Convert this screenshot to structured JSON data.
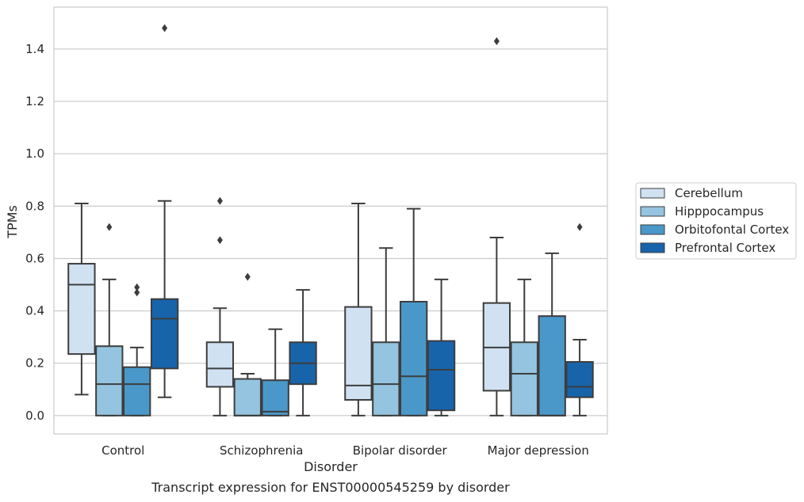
{
  "caption": "Transcript expression for ENST00000545259 by disorder",
  "chart_data": {
    "type": "box",
    "xlabel": "Disorder",
    "ylabel": "TPMs",
    "ylim": [
      -0.07,
      1.56
    ],
    "yticks": [
      0.0,
      0.2,
      0.4,
      0.6,
      0.8,
      1.0,
      1.2,
      1.4
    ],
    "ytick_labels": [
      "0.0",
      "0.2",
      "0.4",
      "0.6",
      "0.8",
      "1.0",
      "1.2",
      "1.4"
    ],
    "grid": "horizontal",
    "legend_placement": "right",
    "categories": [
      "Control",
      "Schizophrenia",
      "Bipolar disorder",
      "Major depression"
    ],
    "series": [
      {
        "name": "Cerebellum",
        "color": "#d0e1f2",
        "boxes": [
          {
            "whislo": 0.08,
            "q1": 0.235,
            "med": 0.5,
            "q3": 0.58,
            "whishi": 0.81,
            "fliers": []
          },
          {
            "whislo": 0.0,
            "q1": 0.11,
            "med": 0.18,
            "q3": 0.28,
            "whishi": 0.41,
            "fliers": [
              0.67,
              0.82
            ]
          },
          {
            "whislo": 0.0,
            "q1": 0.06,
            "med": 0.115,
            "q3": 0.415,
            "whishi": 0.81,
            "fliers": []
          },
          {
            "whislo": 0.0,
            "q1": 0.095,
            "med": 0.26,
            "q3": 0.43,
            "whishi": 0.68,
            "fliers": [
              1.43
            ]
          }
        ]
      },
      {
        "name": "Hipppocampus",
        "color": "#94c4df",
        "boxes": [
          {
            "whislo": 0.0,
            "q1": 0.0,
            "med": 0.12,
            "q3": 0.265,
            "whishi": 0.52,
            "fliers": [
              0.72
            ]
          },
          {
            "whislo": 0.0,
            "q1": 0.0,
            "med": 0.0,
            "q3": 0.14,
            "whishi": 0.16,
            "fliers": [
              0.53
            ]
          },
          {
            "whislo": 0.0,
            "q1": 0.0,
            "med": 0.12,
            "q3": 0.28,
            "whishi": 0.64,
            "fliers": []
          },
          {
            "whislo": 0.0,
            "q1": 0.0,
            "med": 0.16,
            "q3": 0.28,
            "whishi": 0.52,
            "fliers": []
          }
        ]
      },
      {
        "name": "Orbitofontal Cortex",
        "color": "#4a98c9",
        "boxes": [
          {
            "whislo": 0.0,
            "q1": 0.0,
            "med": 0.12,
            "q3": 0.185,
            "whishi": 0.26,
            "fliers": [
              0.47,
              0.49
            ]
          },
          {
            "whislo": 0.0,
            "q1": 0.0,
            "med": 0.015,
            "q3": 0.135,
            "whishi": 0.33,
            "fliers": []
          },
          {
            "whislo": 0.0,
            "q1": 0.0,
            "med": 0.15,
            "q3": 0.435,
            "whishi": 0.79,
            "fliers": []
          },
          {
            "whislo": 0.0,
            "q1": 0.0,
            "med": 0.0,
            "q3": 0.38,
            "whishi": 0.62,
            "fliers": []
          }
        ]
      },
      {
        "name": "Prefrontal Cortex",
        "color": "#1764ab",
        "boxes": [
          {
            "whislo": 0.07,
            "q1": 0.18,
            "med": 0.37,
            "q3": 0.445,
            "whishi": 0.82,
            "fliers": [
              1.48
            ]
          },
          {
            "whislo": 0.0,
            "q1": 0.12,
            "med": 0.2,
            "q3": 0.28,
            "whishi": 0.48,
            "fliers": []
          },
          {
            "whislo": 0.0,
            "q1": 0.02,
            "med": 0.175,
            "q3": 0.285,
            "whishi": 0.52,
            "fliers": []
          },
          {
            "whislo": 0.0,
            "q1": 0.07,
            "med": 0.11,
            "q3": 0.205,
            "whishi": 0.29,
            "fliers": [
              0.72
            ]
          }
        ]
      }
    ]
  }
}
